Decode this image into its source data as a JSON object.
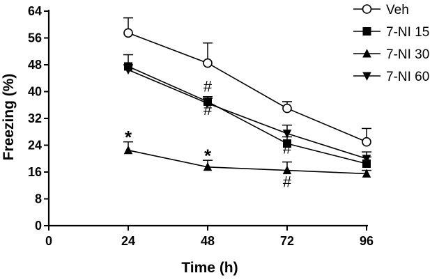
{
  "chart_data": {
    "type": "line",
    "xlabel": "Time (h)",
    "ylabel": "Freezing (%)",
    "xlim": [
      0,
      96
    ],
    "ylim": [
      0,
      64
    ],
    "xticks": [
      0,
      24,
      48,
      72,
      96
    ],
    "yticks": [
      0,
      8,
      16,
      24,
      32,
      40,
      48,
      56,
      64
    ],
    "x": [
      24,
      48,
      72,
      96
    ],
    "grid": false,
    "legend_position": "top-right",
    "series": [
      {
        "name": "Veh",
        "marker": "circle-open",
        "values": [
          57.5,
          48.5,
          35,
          25
        ],
        "err": [
          4.5,
          6,
          2,
          4
        ]
      },
      {
        "name": "7-NI 15",
        "marker": "square",
        "values": [
          47.5,
          37,
          24.5,
          18.5
        ],
        "err": [
          3.5,
          1.5,
          2,
          2
        ]
      },
      {
        "name": "7-NI 30",
        "marker": "triangle-up",
        "values": [
          22.5,
          17.5,
          16.5,
          15.5
        ],
        "err": [
          2.5,
          2,
          2.5,
          1
        ]
      },
      {
        "name": "7-NI 60",
        "marker": "triangle-down",
        "values": [
          46.5,
          36.5,
          27.5,
          20
        ],
        "err": [
          1.5,
          1.5,
          2.5,
          2
        ]
      }
    ],
    "annotations": [
      {
        "text": "*",
        "x": 24,
        "y": 27,
        "style": "star"
      },
      {
        "text": "*",
        "x": 48,
        "y": 21.5,
        "style": "star"
      },
      {
        "text": "#",
        "x": 48,
        "y": 40,
        "style": "hash"
      },
      {
        "text": "#",
        "x": 48,
        "y": 33,
        "style": "hash"
      },
      {
        "text": "#",
        "x": 72,
        "y": 21.5,
        "style": "hash"
      },
      {
        "text": "#",
        "x": 72,
        "y": 11.5,
        "style": "hash"
      }
    ]
  }
}
